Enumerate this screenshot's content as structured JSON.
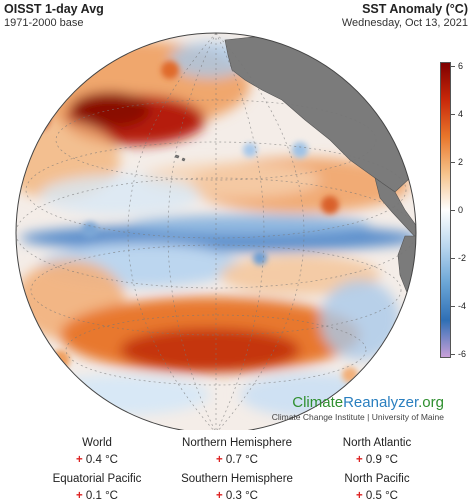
{
  "header": {
    "left_title": "OISST 1-day Avg",
    "left_subtitle": "1971-2000 base",
    "right_title": "SST Anomaly (°C)",
    "right_subtitle": "Wednesday, Oct 13, 2021"
  },
  "brand": {
    "name_part1": "Climate",
    "name_part2": "Reanalyzer",
    "name_part3": ".org",
    "subtitle": "Climate Change Institute | University of Maine"
  },
  "colorbar": {
    "ticks": [
      "6",
      "4",
      "2",
      "0",
      "-2",
      "-4",
      "-6"
    ],
    "colors": [
      "#7f0000",
      "#c8280a",
      "#e8762b",
      "#f6c28a",
      "#ffffff",
      "#b9d6ee",
      "#6aa5d6",
      "#2f6fb5",
      "#c8a0d8"
    ]
  },
  "stats": [
    {
      "label": "World",
      "sign": "+",
      "value": "0.4 °C"
    },
    {
      "label": "Northern Hemisphere",
      "sign": "+",
      "value": "0.7 °C"
    },
    {
      "label": "North Atlantic",
      "sign": "+",
      "value": "0.9 °C"
    },
    {
      "label": "Equatorial Pacific",
      "sign": "+",
      "value": "0.1 °C"
    },
    {
      "label": "Southern Hemisphere",
      "sign": "+",
      "value": "0.3 °C"
    },
    {
      "label": "North Pacific",
      "sign": "+",
      "value": "0.5 °C"
    }
  ],
  "map": {
    "ocean_color": "#f4ede8",
    "land_color": "#7b7b7b"
  }
}
